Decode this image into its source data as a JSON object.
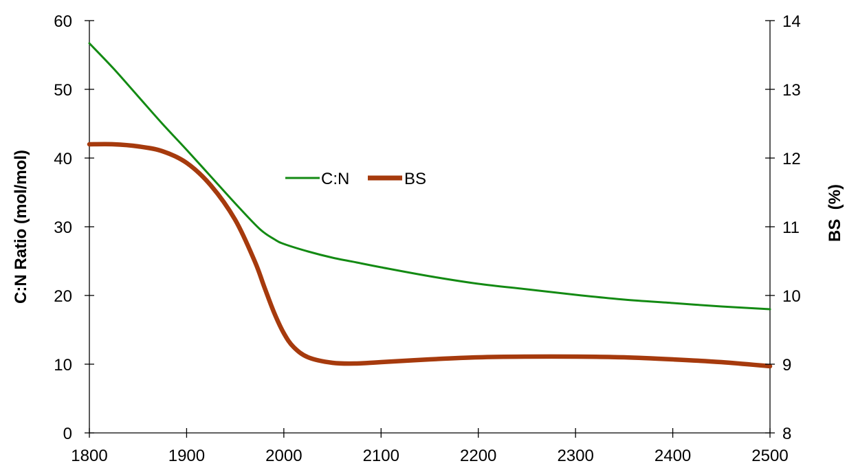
{
  "chart_data": {
    "type": "line",
    "x_axis": {
      "min": 1800,
      "max": 2500,
      "ticks": [
        1800,
        1900,
        2000,
        2100,
        2200,
        2300,
        2400,
        2500
      ]
    },
    "y_axis_left": {
      "label": "C:N Ratio (mol/mol)",
      "min": 0,
      "max": 60,
      "ticks": [
        0,
        10,
        20,
        30,
        40,
        50,
        60
      ]
    },
    "y_axis_right": {
      "label": "BS  (%)",
      "min": 8,
      "max": 14,
      "ticks": [
        8,
        9,
        10,
        11,
        12,
        13,
        14
      ]
    },
    "legend": {
      "placement": "upper-center",
      "orientation": "horizontal"
    },
    "grid": false,
    "series": [
      {
        "name": "C:N",
        "axis": "left",
        "color": "#138a13",
        "x": [
          1800,
          1825,
          1850,
          1875,
          1900,
          1925,
          1950,
          1975,
          1990,
          2000,
          2025,
          2050,
          2075,
          2100,
          2150,
          2200,
          2250,
          2300,
          2350,
          2400,
          2450,
          2500
        ],
        "y": [
          56.7,
          53.0,
          49.0,
          45.0,
          41.2,
          37.3,
          33.4,
          29.7,
          28.2,
          27.5,
          26.4,
          25.5,
          24.8,
          24.1,
          22.8,
          21.7,
          20.9,
          20.1,
          19.4,
          18.9,
          18.4,
          18.0
        ]
      },
      {
        "name": "BS",
        "axis": "right",
        "color": "#a63a0d",
        "x": [
          1800,
          1825,
          1850,
          1875,
          1900,
          1925,
          1950,
          1970,
          1980,
          1990,
          2000,
          2010,
          2025,
          2050,
          2075,
          2100,
          2150,
          2200,
          2250,
          2300,
          2350,
          2400,
          2450,
          2500
        ],
        "y": [
          12.2,
          12.2,
          12.17,
          12.1,
          11.93,
          11.6,
          11.1,
          10.5,
          10.12,
          9.75,
          9.45,
          9.25,
          9.1,
          9.02,
          9.01,
          9.03,
          9.07,
          9.1,
          9.11,
          9.11,
          9.1,
          9.07,
          9.03,
          8.97
        ]
      }
    ]
  }
}
